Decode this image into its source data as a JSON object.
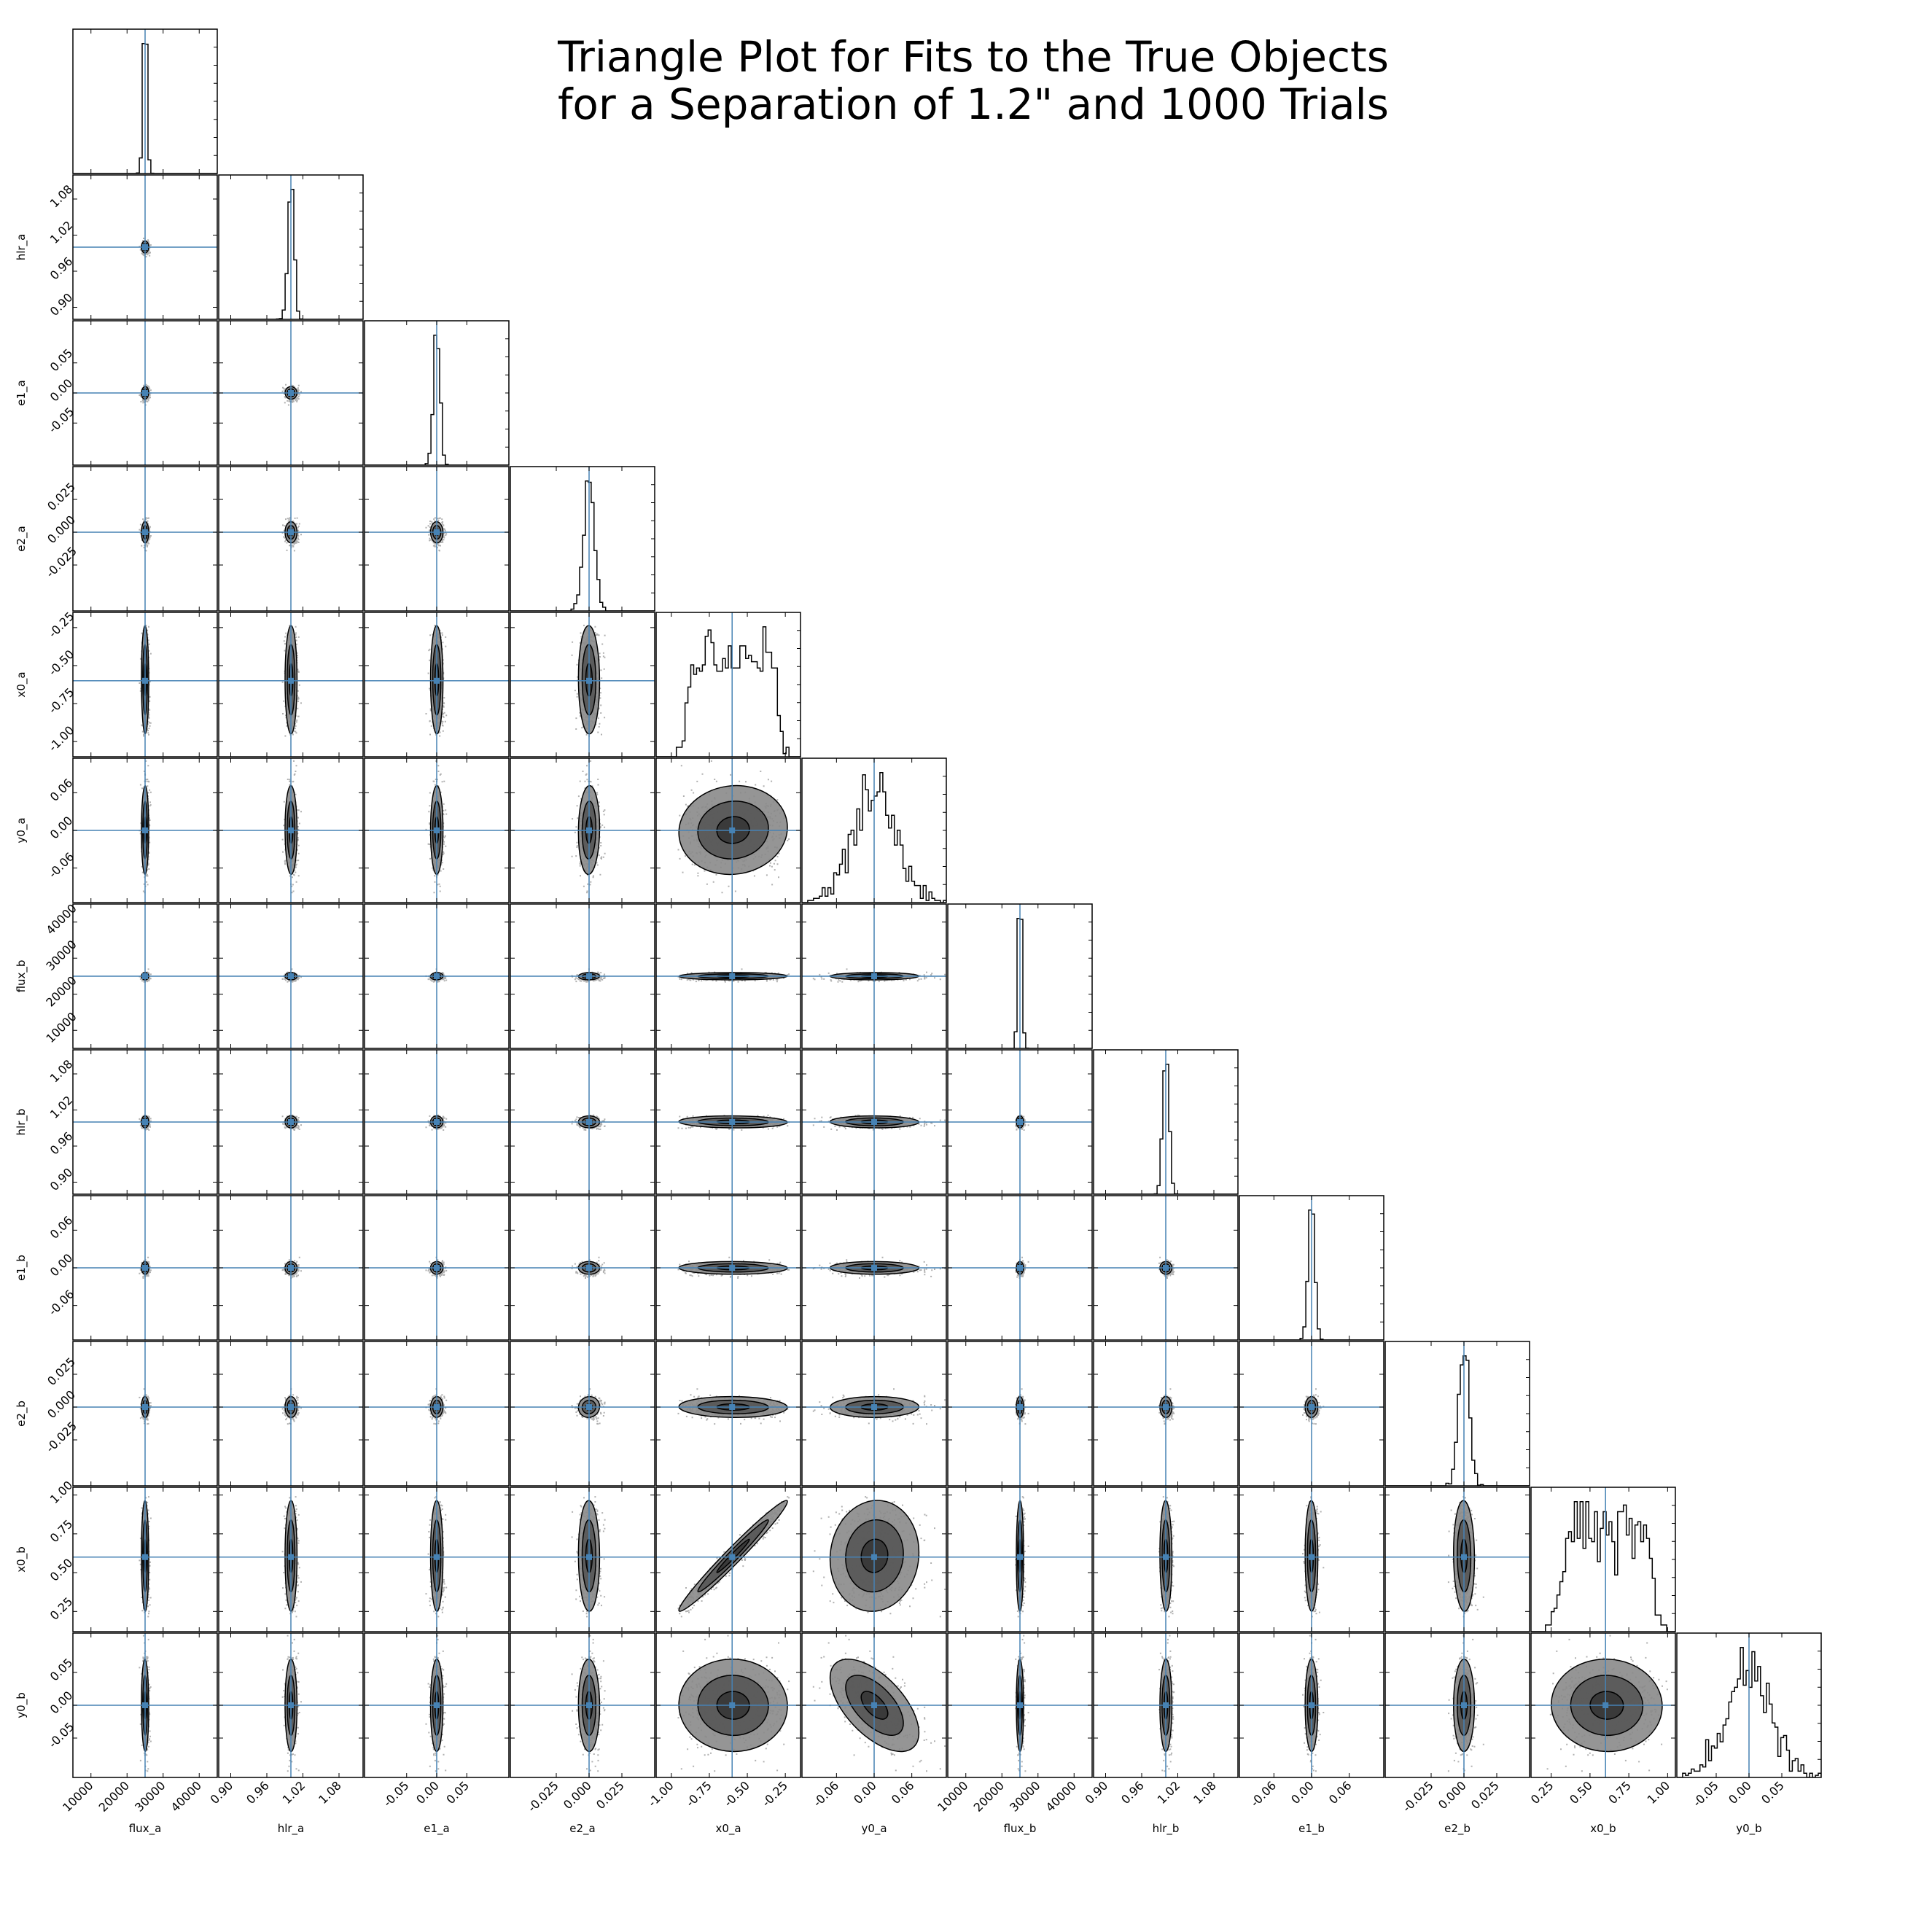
{
  "title_lines": [
    "Triangle Plot for Fits to the True Objects",
    "for a Separation of 1.2\" and 1000 Trials"
  ],
  "colors": {
    "truth_line": "#4682b4",
    "contour": "#000000",
    "fill_dark": "#555555",
    "fill_mid": "#8a8a8a",
    "scatter": "#b0b0b0",
    "frame": "#000000"
  },
  "chart_data": {
    "type": "corner",
    "title": "Triangle Plot for Fits to the True Objects for a Separation of 1.2\" and 1000 Trials",
    "n_trials": 1000,
    "parameters": [
      {
        "name": "flux_a",
        "range": [
          5000,
          45000
        ],
        "ticks": [
          "10000",
          "20000",
          "30000",
          "40000"
        ],
        "tick_values": [
          10000,
          20000,
          30000,
          40000
        ],
        "truth": 25000,
        "spread": 500,
        "hist_shape": "narrow"
      },
      {
        "name": "hlr_a",
        "range": [
          0.88,
          1.12
        ],
        "ticks": [
          "0.90",
          "0.96",
          "1.02",
          "1.08"
        ],
        "tick_values": [
          0.9,
          0.96,
          1.02,
          1.08
        ],
        "truth": 1.0,
        "spread": 0.005,
        "hist_shape": "gauss"
      },
      {
        "name": "e1_a",
        "range": [
          -0.12,
          0.12
        ],
        "ticks": [
          "-0.05",
          "0.00",
          "0.05"
        ],
        "tick_values": [
          -0.05,
          0.0,
          0.05
        ],
        "truth": 0.0,
        "spread": 0.005,
        "hist_shape": "gauss"
      },
      {
        "name": "e2_a",
        "range": [
          -0.06,
          0.05
        ],
        "ticks": [
          "-0.025",
          "0.000",
          "0.025"
        ],
        "tick_values": [
          -0.025,
          0.0,
          0.025
        ],
        "truth": 0.0,
        "spread": 0.004,
        "hist_shape": "gauss"
      },
      {
        "name": "x0_a",
        "range": [
          -1.1,
          -0.15
        ],
        "ticks": [
          "-1.00",
          "-0.75",
          "-0.50",
          "-0.25"
        ],
        "tick_values": [
          -1.0,
          -0.75,
          -0.5,
          -0.25
        ],
        "truth": -0.6,
        "spread": 0.18,
        "hist_shape": "broad"
      },
      {
        "name": "y0_a",
        "range": [
          -0.115,
          0.115
        ],
        "ticks": [
          "-0.06",
          "0.00",
          "0.06"
        ],
        "tick_values": [
          -0.06,
          0.0,
          0.06
        ],
        "truth": 0.0,
        "spread": 0.035,
        "hist_shape": "gauss"
      },
      {
        "name": "flux_b",
        "range": [
          5000,
          45000
        ],
        "ticks": [
          "10000",
          "20000",
          "30000",
          "40000"
        ],
        "tick_values": [
          10000,
          20000,
          30000,
          40000
        ],
        "truth": 25000,
        "spread": 500,
        "hist_shape": "narrow"
      },
      {
        "name": "hlr_b",
        "range": [
          0.88,
          1.12
        ],
        "ticks": [
          "0.90",
          "0.96",
          "1.02",
          "1.08"
        ],
        "tick_values": [
          0.9,
          0.96,
          1.02,
          1.08
        ],
        "truth": 1.0,
        "spread": 0.005,
        "hist_shape": "gauss"
      },
      {
        "name": "e1_b",
        "range": [
          -0.115,
          0.115
        ],
        "ticks": [
          "-0.06",
          "0.00",
          "0.06"
        ],
        "tick_values": [
          -0.06,
          0.0,
          0.06
        ],
        "truth": 0.0,
        "spread": 0.005,
        "hist_shape": "gauss"
      },
      {
        "name": "e2_b",
        "range": [
          -0.06,
          0.05
        ],
        "ticks": [
          "-0.025",
          "0.000",
          "0.025"
        ],
        "tick_values": [
          -0.025,
          0.0,
          0.025
        ],
        "truth": 0.0,
        "spread": 0.004,
        "hist_shape": "gauss"
      },
      {
        "name": "x0_b",
        "range": [
          0.12,
          1.05
        ],
        "ticks": [
          "0.25",
          "0.50",
          "0.75",
          "1.00"
        ],
        "tick_values": [
          0.25,
          0.5,
          0.75,
          1.0
        ],
        "truth": 0.6,
        "spread": 0.18,
        "hist_shape": "broad"
      },
      {
        "name": "y0_b",
        "range": [
          -0.11,
          0.11
        ],
        "ticks": [
          "-0.05",
          "0.00",
          "0.05"
        ],
        "tick_values": [
          -0.05,
          0.0,
          0.05
        ],
        "truth": 0.0,
        "spread": 0.035,
        "hist_shape": "gauss"
      }
    ],
    "correlations": [
      {
        "x": "x0_a",
        "y": "x0_b",
        "rho": 0.98
      },
      {
        "x": "y0_a",
        "y": "y0_b",
        "rho": -0.6
      }
    ],
    "legend": "none",
    "grid": false
  }
}
